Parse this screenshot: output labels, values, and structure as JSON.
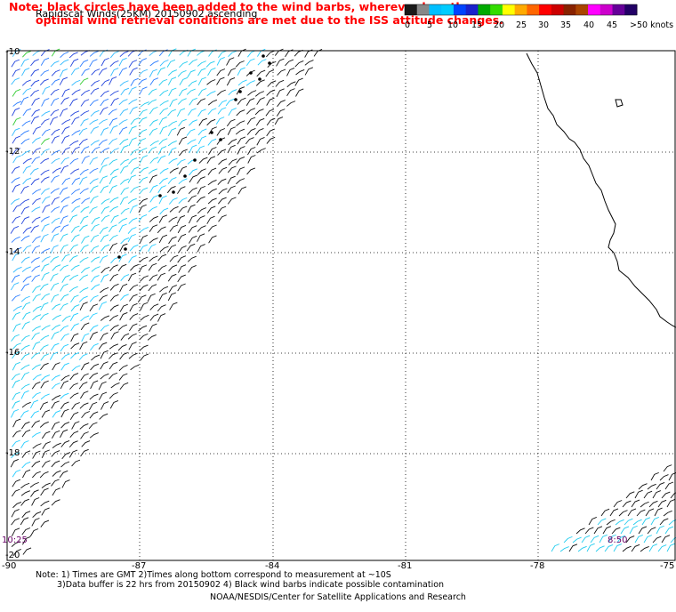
{
  "title": "Rapidscat Winds(25KM) 20150902 ascending",
  "note_line1": "Note: black circles have been added to the wind barbs, wherever less than",
  "note_line2": "optimal wind retrieval conditions are met due to the ISS attitude changes.",
  "legend": {
    "labels": [
      "0",
      "5",
      "10",
      "15",
      "20",
      "25",
      "30",
      "35",
      "40",
      "45",
      ">50 knots"
    ],
    "colors": [
      "#1a1a1a",
      "#888888",
      "#00bfff",
      "#00ccff",
      "#0044ff",
      "#1a22cc",
      "#00aa00",
      "#33dd00",
      "#ffff00",
      "#ffaa00",
      "#ff6600",
      "#ff0000",
      "#cc0000",
      "#882200",
      "#aa4400",
      "#ff00ff",
      "#cc00cc",
      "#660099",
      "#220066"
    ]
  },
  "map": {
    "lat_labels": [
      "-10",
      "-12",
      "-14",
      "-16",
      "-18",
      "-20"
    ],
    "lon_labels": [
      "-90",
      "-87",
      "-84",
      "-81",
      "-78",
      "-75"
    ],
    "time_labels": [
      {
        "text": "10:25",
        "position": "left"
      },
      {
        "text": "8:50",
        "position": "right"
      }
    ]
  },
  "footnote_line1": "Note: 1) Times are GMT 2)Times along bottom correspond to measurement at ~10S",
  "footnote_line2": "3)Data buffer is 22 hrs from 20150902 4) Black wind barbs indicate possible contamination",
  "credit": "NOAA/NESDIS/Center for Satellite Applications and Research"
}
